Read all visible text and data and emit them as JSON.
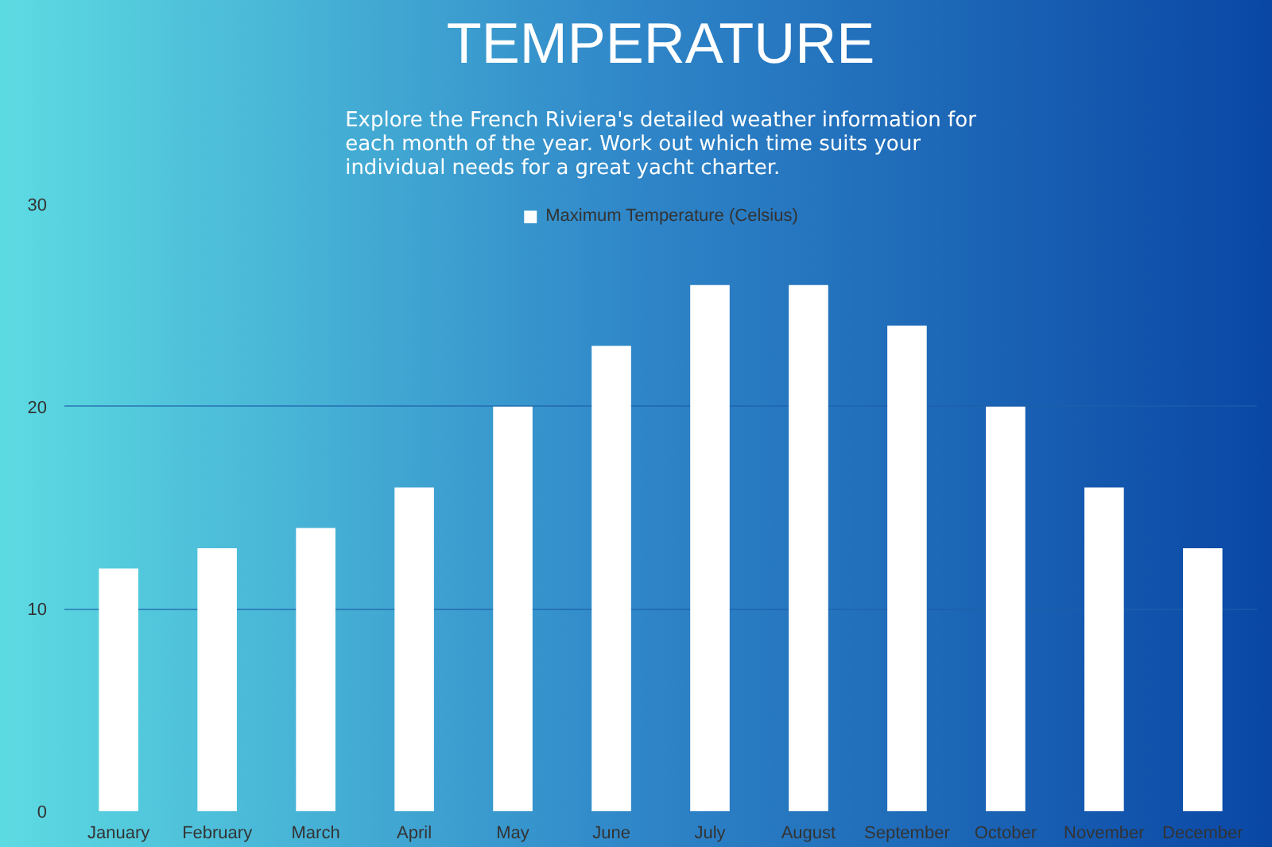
{
  "chart_data": {
    "type": "bar",
    "title": "TEMPERATURE",
    "subtitle": "Explore the French Riviera's detailed weather information for each month of the year. Work out which time suits your individual needs for a great yacht charter.",
    "categories": [
      "January",
      "February",
      "March",
      "April",
      "May",
      "June",
      "July",
      "August",
      "September",
      "October",
      "November",
      "December"
    ],
    "series": [
      {
        "name": "Maximum Temperature (Celsius)",
        "color": "#ffffff",
        "values": [
          12,
          13,
          14,
          16,
          20,
          23,
          26,
          26,
          24,
          20,
          16,
          13
        ]
      }
    ],
    "ylim": [
      0,
      30
    ],
    "yticks": [
      0,
      10,
      20,
      30
    ],
    "grid": "y",
    "legend": "top"
  }
}
